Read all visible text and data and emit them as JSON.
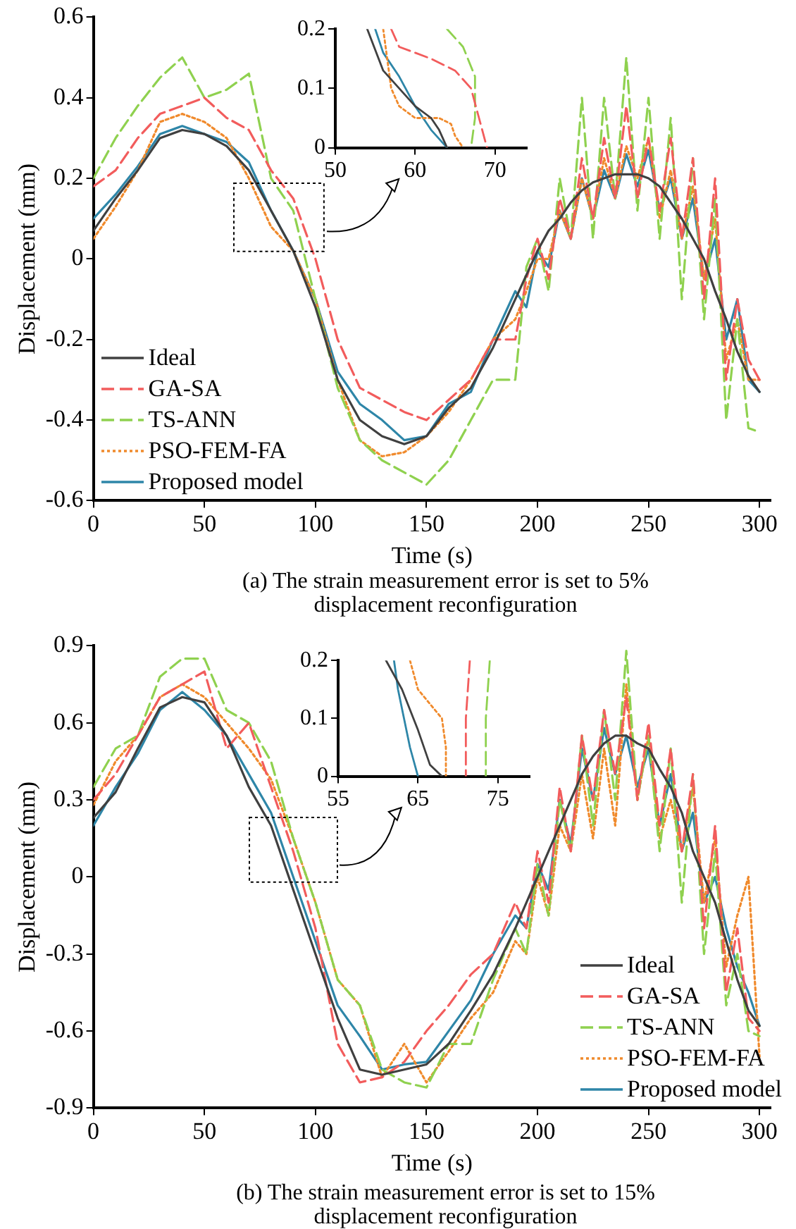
{
  "chart_data": [
    {
      "type": "line",
      "xlabel": "Time (s)",
      "ylabel": "Displacement (mm)",
      "annotations": [
        "(a) The strain measurement error is set to 5% displacement reconfiguration"
      ],
      "x": [
        0,
        10,
        20,
        30,
        40,
        50,
        60,
        70,
        80,
        90,
        100,
        110,
        120,
        130,
        140,
        150,
        160,
        170,
        180,
        190,
        195,
        200,
        205,
        210,
        215,
        220,
        225,
        230,
        235,
        240,
        245,
        250,
        255,
        260,
        265,
        270,
        275,
        280,
        285,
        290,
        295,
        300
      ],
      "series": [
        {
          "name": "Ideal",
          "color": "#404040",
          "line_style": "solid",
          "values": [
            0.07,
            0.15,
            0.22,
            0.3,
            0.32,
            0.31,
            0.28,
            0.22,
            0.12,
            0.02,
            -0.12,
            -0.3,
            -0.4,
            -0.44,
            -0.46,
            -0.44,
            -0.37,
            -0.32,
            -0.22,
            -0.1,
            -0.04,
            0.02,
            0.07,
            0.1,
            0.14,
            0.17,
            0.19,
            0.2,
            0.21,
            0.21,
            0.21,
            0.2,
            0.18,
            0.14,
            0.1,
            0.05,
            0,
            -0.08,
            -0.15,
            -0.23,
            -0.29,
            -0.33
          ]
        },
        {
          "name": "GA-SA",
          "color": "#f25c5c",
          "line_style": "dashed",
          "values": [
            0.18,
            0.22,
            0.3,
            0.36,
            0.38,
            0.4,
            0.35,
            0.32,
            0.22,
            0.15,
            0,
            -0.2,
            -0.32,
            -0.35,
            -0.38,
            -0.4,
            -0.35,
            -0.3,
            -0.2,
            -0.2,
            -0.05,
            0.05,
            -0.05,
            0.15,
            0.05,
            0.25,
            0.1,
            0.3,
            0.15,
            0.38,
            0.15,
            0.3,
            0.12,
            0.3,
            0.05,
            0.25,
            -0.1,
            0.2,
            -0.3,
            -0.1,
            -0.25,
            -0.3
          ]
        },
        {
          "name": "TS-ANN",
          "color": "#8fd14f",
          "line_style": "dashed",
          "values": [
            0.2,
            0.3,
            0.38,
            0.45,
            0.5,
            0.4,
            0.42,
            0.46,
            0.2,
            0.12,
            -0.1,
            -0.32,
            -0.45,
            -0.5,
            -0.53,
            -0.56,
            -0.5,
            -0.4,
            -0.3,
            -0.3,
            -0.02,
            0.05,
            -0.08,
            0.2,
            0.05,
            0.4,
            0.05,
            0.4,
            0.15,
            0.5,
            0.12,
            0.4,
            0.05,
            0.35,
            -0.1,
            0.25,
            -0.15,
            0.15,
            -0.4,
            -0.15,
            -0.42,
            -0.43
          ]
        },
        {
          "name": "PSO-FEM-FA",
          "color": "#f08a2c",
          "line_style": "dotted",
          "values": [
            0.05,
            0.13,
            0.22,
            0.34,
            0.36,
            0.34,
            0.3,
            0.2,
            0.08,
            0.02,
            -0.1,
            -0.3,
            -0.45,
            -0.49,
            -0.48,
            -0.44,
            -0.38,
            -0.3,
            -0.2,
            -0.15,
            -0.08,
            0,
            0,
            0.12,
            0.05,
            0.2,
            0.1,
            0.25,
            0.15,
            0.28,
            0.2,
            0.3,
            0.1,
            0.22,
            0.05,
            0.18,
            -0.05,
            0.1,
            -0.25,
            -0.15,
            -0.3,
            -0.3
          ]
        },
        {
          "name": "Proposed model",
          "color": "#2e86a8",
          "line_style": "solid",
          "values": [
            0.1,
            0.16,
            0.23,
            0.31,
            0.33,
            0.31,
            0.29,
            0.24,
            0.12,
            0.02,
            -0.1,
            -0.28,
            -0.36,
            -0.4,
            -0.45,
            -0.44,
            -0.36,
            -0.33,
            -0.2,
            -0.08,
            -0.12,
            0.02,
            -0.02,
            0.12,
            0.05,
            0.2,
            0.1,
            0.22,
            0.15,
            0.26,
            0.18,
            0.27,
            0.12,
            0.2,
            0.05,
            0.15,
            -0.05,
            0.05,
            -0.2,
            -0.1,
            -0.3,
            -0.33
          ]
        }
      ],
      "xlim": [
        0,
        305
      ],
      "xticks": [
        0,
        50,
        100,
        150,
        200,
        250,
        300
      ],
      "ylim": [
        -0.6,
        0.6
      ],
      "yticks": [
        -0.6,
        -0.4,
        -0.2,
        0,
        0.2,
        0.4,
        0.6
      ],
      "grid": false,
      "legend": "bottom left",
      "marker": "none"
    },
    {
      "type": "line",
      "series": [
        {
          "color": "#404040",
          "line_style": "solid",
          "x": [
            54,
            56,
            58,
            60,
            62,
            63,
            64
          ],
          "values": [
            0.2,
            0.13,
            0.1,
            0.07,
            0.05,
            0.03,
            0
          ]
        },
        {
          "color": "#f25c5c",
          "line_style": "dashed",
          "x": [
            57,
            58,
            62,
            65,
            67,
            68,
            69
          ],
          "values": [
            0.2,
            0.17,
            0.15,
            0.13,
            0.1,
            0.05,
            0
          ]
        },
        {
          "color": "#8fd14f",
          "line_style": "dashed",
          "x": [
            64,
            66,
            67.5,
            67.5,
            67
          ],
          "values": [
            0.2,
            0.17,
            0.12,
            0.05,
            0
          ]
        },
        {
          "color": "#f08a2c",
          "line_style": "dotted",
          "x": [
            56,
            57,
            58,
            60,
            63,
            64.5,
            65,
            66
          ],
          "values": [
            0.2,
            0.1,
            0.07,
            0.05,
            0.05,
            0.04,
            0.02,
            0
          ]
        },
        {
          "color": "#2e86a8",
          "line_style": "solid",
          "x": [
            55,
            56,
            58,
            60,
            62,
            64
          ],
          "values": [
            0.2,
            0.16,
            0.12,
            0.07,
            0.03,
            0
          ]
        }
      ],
      "xlim": [
        50,
        74
      ],
      "xticks": [
        50,
        60,
        70
      ],
      "ylim": [
        0,
        0.2
      ],
      "yticks": [
        0,
        0.1,
        0.2
      ],
      "grid": false,
      "marker": "none"
    },
    {
      "type": "line",
      "xlabel": "Time (s)",
      "ylabel": "Displacement (mm)",
      "annotations": [
        "(b) The strain measurement error is set to 15% displacement reconfiguration"
      ],
      "x": [
        0,
        10,
        20,
        30,
        40,
        50,
        60,
        70,
        80,
        90,
        100,
        110,
        120,
        130,
        140,
        150,
        160,
        170,
        180,
        190,
        195,
        200,
        205,
        210,
        215,
        220,
        225,
        230,
        235,
        240,
        245,
        250,
        255,
        260,
        265,
        270,
        275,
        280,
        285,
        290,
        295,
        300
      ],
      "series": [
        {
          "name": "Ideal",
          "color": "#404040",
          "line_style": "solid",
          "values": [
            0.23,
            0.33,
            0.5,
            0.66,
            0.7,
            0.68,
            0.55,
            0.35,
            0.2,
            -0.05,
            -0.3,
            -0.55,
            -0.75,
            -0.77,
            -0.75,
            -0.73,
            -0.65,
            -0.52,
            -0.38,
            -0.2,
            -0.1,
            0,
            0.1,
            0.2,
            0.3,
            0.4,
            0.47,
            0.52,
            0.55,
            0.55,
            0.52,
            0.5,
            0.42,
            0.35,
            0.25,
            0.1,
            0,
            -0.1,
            -0.25,
            -0.4,
            -0.52,
            -0.58
          ]
        },
        {
          "name": "GA-SA",
          "color": "#f25c5c",
          "line_style": "dashed",
          "values": [
            0.3,
            0.4,
            0.55,
            0.7,
            0.75,
            0.8,
            0.5,
            0.6,
            0.35,
            0.1,
            -0.2,
            -0.65,
            -0.8,
            -0.78,
            -0.72,
            -0.6,
            -0.5,
            -0.38,
            -0.3,
            -0.1,
            -0.2,
            0.1,
            -0.1,
            0.35,
            0.1,
            0.55,
            0.3,
            0.65,
            0.4,
            0.7,
            0.3,
            0.6,
            0.2,
            0.5,
            0.1,
            0.4,
            -0.2,
            0.2,
            -0.45,
            -0.2,
            -0.55,
            -0.6
          ]
        },
        {
          "name": "TS-ANN",
          "color": "#8fd14f",
          "line_style": "dashed",
          "values": [
            0.35,
            0.5,
            0.55,
            0.78,
            0.85,
            0.85,
            0.65,
            0.6,
            0.45,
            0.15,
            -0.1,
            -0.4,
            -0.5,
            -0.75,
            -0.8,
            -0.82,
            -0.65,
            -0.65,
            -0.4,
            -0.2,
            -0.3,
            0.05,
            -0.15,
            0.3,
            0.1,
            0.55,
            0.2,
            0.65,
            0.3,
            0.88,
            0.3,
            0.55,
            0.1,
            0.5,
            -0.1,
            0.4,
            -0.3,
            0.1,
            -0.5,
            -0.3,
            -0.6,
            -0.62
          ]
        },
        {
          "name": "PSO-FEM-FA",
          "color": "#f08a2c",
          "line_style": "dotted",
          "values": [
            0.28,
            0.45,
            0.55,
            0.7,
            0.75,
            0.7,
            0.6,
            0.5,
            0.38,
            0.15,
            -0.1,
            -0.4,
            -0.5,
            -0.78,
            -0.65,
            -0.8,
            -0.68,
            -0.55,
            -0.45,
            -0.25,
            -0.3,
            0,
            -0.15,
            0.2,
            0.1,
            0.4,
            0.15,
            0.5,
            0.2,
            0.75,
            0.3,
            0.55,
            0.15,
            0.3,
            0.1,
            0.35,
            -0.1,
            0.15,
            -0.35,
            -0.15,
            0,
            -0.7
          ]
        },
        {
          "name": "Proposed model",
          "color": "#2e86a8",
          "line_style": "solid",
          "values": [
            0.2,
            0.35,
            0.48,
            0.65,
            0.72,
            0.65,
            0.55,
            0.4,
            0.25,
            0,
            -0.25,
            -0.5,
            -0.62,
            -0.75,
            -0.73,
            -0.72,
            -0.6,
            -0.48,
            -0.3,
            -0.15,
            -0.2,
            0.05,
            -0.05,
            0.3,
            0.13,
            0.5,
            0.3,
            0.58,
            0.4,
            0.55,
            0.35,
            0.5,
            0.2,
            0.4,
            0.1,
            0.25,
            -0.1,
            0,
            -0.2,
            -0.35,
            -0.45,
            -0.58
          ]
        }
      ],
      "xlim": [
        0,
        305
      ],
      "xticks": [
        0,
        50,
        100,
        150,
        200,
        250,
        300
      ],
      "ylim": [
        -0.9,
        0.9
      ],
      "yticks": [
        -0.9,
        -0.6,
        -0.3,
        0,
        0.3,
        0.6,
        0.9
      ],
      "grid": false,
      "legend": "bottom right",
      "marker": "none"
    },
    {
      "type": "line",
      "series": [
        {
          "color": "#404040",
          "line_style": "solid",
          "x": [
            61,
            63,
            65,
            66.5,
            68
          ],
          "values": [
            0.2,
            0.15,
            0.08,
            0.02,
            0
          ]
        },
        {
          "color": "#f25c5c",
          "line_style": "dashed",
          "x": [
            71.5,
            71,
            71
          ],
          "values": [
            0.2,
            0.1,
            0
          ]
        },
        {
          "color": "#8fd14f",
          "line_style": "dashed",
          "x": [
            74,
            73.5,
            73.5
          ],
          "values": [
            0.2,
            0.1,
            0
          ]
        },
        {
          "color": "#f08a2c",
          "line_style": "dotted",
          "x": [
            64,
            65,
            68,
            68.5,
            68.5
          ],
          "values": [
            0.2,
            0.15,
            0.1,
            0.05,
            0
          ]
        },
        {
          "color": "#2e86a8",
          "line_style": "solid",
          "x": [
            62,
            62.5,
            64,
            65
          ],
          "values": [
            0.2,
            0.15,
            0.05,
            0
          ]
        }
      ],
      "xlim": [
        55,
        79
      ],
      "xticks": [
        55,
        65,
        75
      ],
      "ylim": [
        0,
        0.2
      ],
      "yticks": [
        0,
        0.1,
        0.2
      ],
      "grid": false,
      "marker": "none"
    }
  ]
}
